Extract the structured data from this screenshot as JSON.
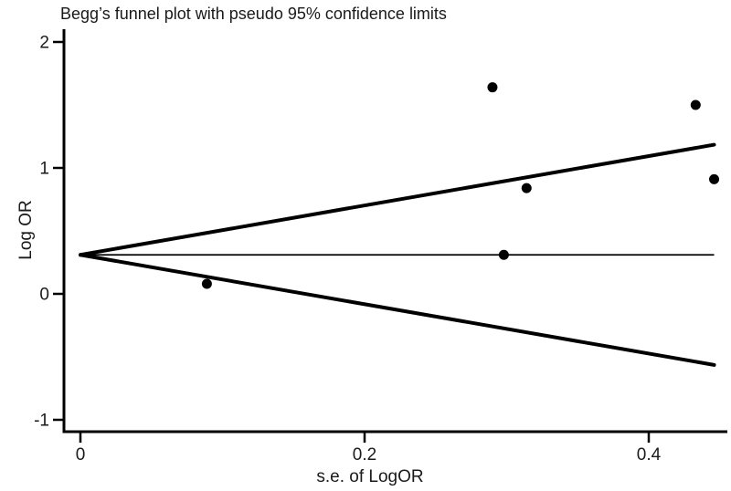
{
  "chart_data": {
    "type": "scatter",
    "title": "Begg’s funnel plot with pseudo 95% confidence limits",
    "xlabel": "s.e. of LogOR",
    "ylabel": "Log OR",
    "x_tick_labels": [
      "0",
      "0.2",
      "0.4"
    ],
    "x_tick_values": [
      0,
      0.2,
      0.4
    ],
    "y_tick_labels": [
      "2",
      "1",
      "0",
      "-1"
    ],
    "y_tick_values": [
      2,
      1,
      0,
      -1
    ],
    "xlim": [
      0,
      0.455
    ],
    "ylim": [
      -1.09,
      2.1
    ],
    "grid": false,
    "legend": false,
    "pooled_log_or": 0.31,
    "z_value": 1.96,
    "funnel": {
      "vertex_se": 0,
      "se_end": 0.446,
      "upper_end_log_or": 1.18,
      "lower_end_log_or": -0.56
    },
    "points": [
      {
        "se": 0.29,
        "log_or": 1.64
      },
      {
        "se": 0.433,
        "log_or": 1.5
      },
      {
        "se": 0.446,
        "log_or": 0.91
      },
      {
        "se": 0.314,
        "log_or": 0.84
      },
      {
        "se": 0.298,
        "log_or": 0.31
      },
      {
        "se": 0.089,
        "log_or": 0.08
      }
    ],
    "colors": {
      "line": "#000000",
      "point": "#000000",
      "text": "#1a1a1a",
      "background": "#ffffff"
    }
  }
}
